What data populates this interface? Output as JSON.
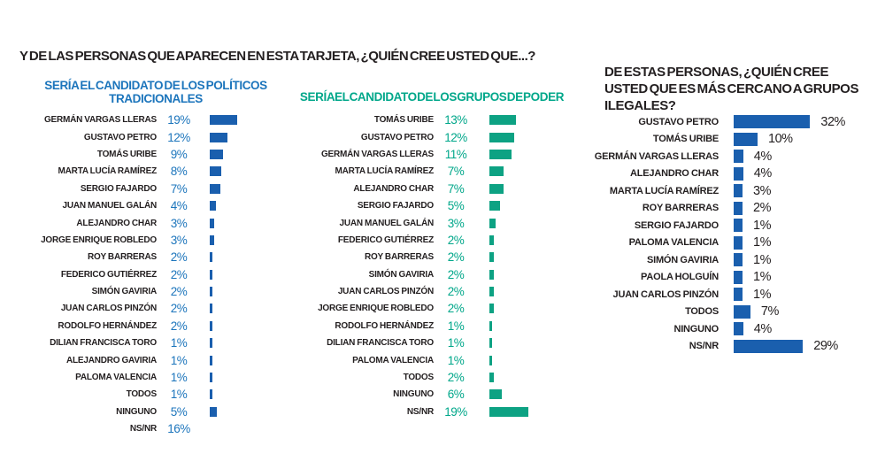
{
  "page": {
    "main_question": "Y DE LAS PERSONAS QUE APARECEN EN ESTA TARJETA, ¿QUIÉN CREE USTED QUE...?"
  },
  "colors": {
    "blue_bar": "#1a5fae",
    "blue_text": "#1c75bc",
    "green_bar": "#0da283",
    "green_text": "#00a78a",
    "dark_text": "#231f20",
    "background": "#ffffff"
  },
  "chart_data": [
    {
      "type": "bar",
      "orientation": "horizontal",
      "title": "SERÍA EL CANDIDATO DE LOS POLÍTICOS TRADICIONALES",
      "value_suffix": "%",
      "bar_color": "#1a5fae",
      "text_color": "#1c75bc",
      "categories": [
        "GERMÁN VARGAS LLERAS",
        "GUSTAVO PETRO",
        "TOMÁS URIBE",
        "MARTA LUCÍA RAMÍREZ",
        "SERGIO FAJARDO",
        "JUAN MANUEL GALÁN",
        "ALEJANDRO CHAR",
        "JORGE ENRIQUE ROBLEDO",
        "ROY BARRERAS",
        "FEDERICO GUTIÉRREZ",
        "SIMÓN GAVIRIA",
        "JUAN CARLOS PINZÓN",
        "RODOLFO HERNÁNDEZ",
        "DILIAN FRANCISCA TORO",
        "ALEJANDRO GAVIRIA",
        "PALOMA VALENCIA",
        "TODOS",
        "NINGUNO",
        "NS/NR"
      ],
      "values": [
        19,
        12,
        9,
        8,
        7,
        4,
        3,
        3,
        2,
        2,
        2,
        2,
        2,
        1,
        1,
        1,
        1,
        5,
        16
      ],
      "layout": {
        "value_position": "between-label-and-bar",
        "hide_bar_for": [
          "NS/NR"
        ],
        "xlim": [
          0,
          20
        ],
        "grid": false,
        "legend": false
      }
    },
    {
      "type": "bar",
      "orientation": "horizontal",
      "title": "SERÍA EL CANDIDATO DE LOS GRUPOS DE PODER",
      "value_suffix": "%",
      "bar_color": "#0da283",
      "text_color": "#00a78a",
      "categories": [
        "TOMÁS URIBE",
        "GUSTAVO PETRO",
        "GERMÁN VARGAS LLERAS",
        "MARTA LUCÍA RAMÍREZ",
        "ALEJANDRO CHAR",
        "SERGIO FAJARDO",
        "JUAN MANUEL GALÁN",
        "FEDERICO GUTIÉRREZ",
        "ROY BARRERAS",
        "SIMÓN GAVIRIA",
        "JUAN CARLOS PINZÓN",
        "JORGE ENRIQUE ROBLEDO",
        "RODOLFO HERNÁNDEZ",
        "DILIAN FRANCISCA TORO",
        "PALOMA VALENCIA",
        "TODOS",
        "NINGUNO",
        "NS/NR"
      ],
      "values": [
        13,
        12,
        11,
        7,
        7,
        5,
        3,
        2,
        2,
        2,
        2,
        2,
        1,
        1,
        1,
        2,
        6,
        19
      ],
      "layout": {
        "value_position": "between-label-and-bar",
        "hide_bar_for": [],
        "xlim": [
          0,
          20
        ],
        "grid": false,
        "legend": false
      }
    },
    {
      "type": "bar",
      "orientation": "horizontal",
      "title": "DE ESTAS PERSONAS, ¿QUIÉN CREE USTED QUE ES MÁS CERCANO A GRUPOS ILEGALES?",
      "value_suffix": "%",
      "bar_color": "#1a5fae",
      "text_color": "#231f20",
      "categories": [
        "GUSTAVO PETRO",
        "TOMÁS URIBE",
        "GERMÁN VARGAS LLERAS",
        "ALEJANDRO CHAR",
        "MARTA LUCÍA RAMÍREZ",
        "ROY BARRERAS",
        "SERGIO FAJARDO",
        "PALOMA VALENCIA",
        "SIMÓN GAVIRIA",
        "PAOLA HOLGUÍN",
        "JUAN CARLOS PINZÓN",
        "TODOS",
        "NINGUNO",
        "NS/NR"
      ],
      "values": [
        32,
        10,
        4,
        4,
        3,
        2,
        1,
        1,
        1,
        1,
        1,
        7,
        4,
        29
      ],
      "layout": {
        "value_position": "after-bar",
        "hide_bar_for": [],
        "xlim": [
          0,
          35
        ],
        "grid": false,
        "legend": false
      }
    }
  ]
}
